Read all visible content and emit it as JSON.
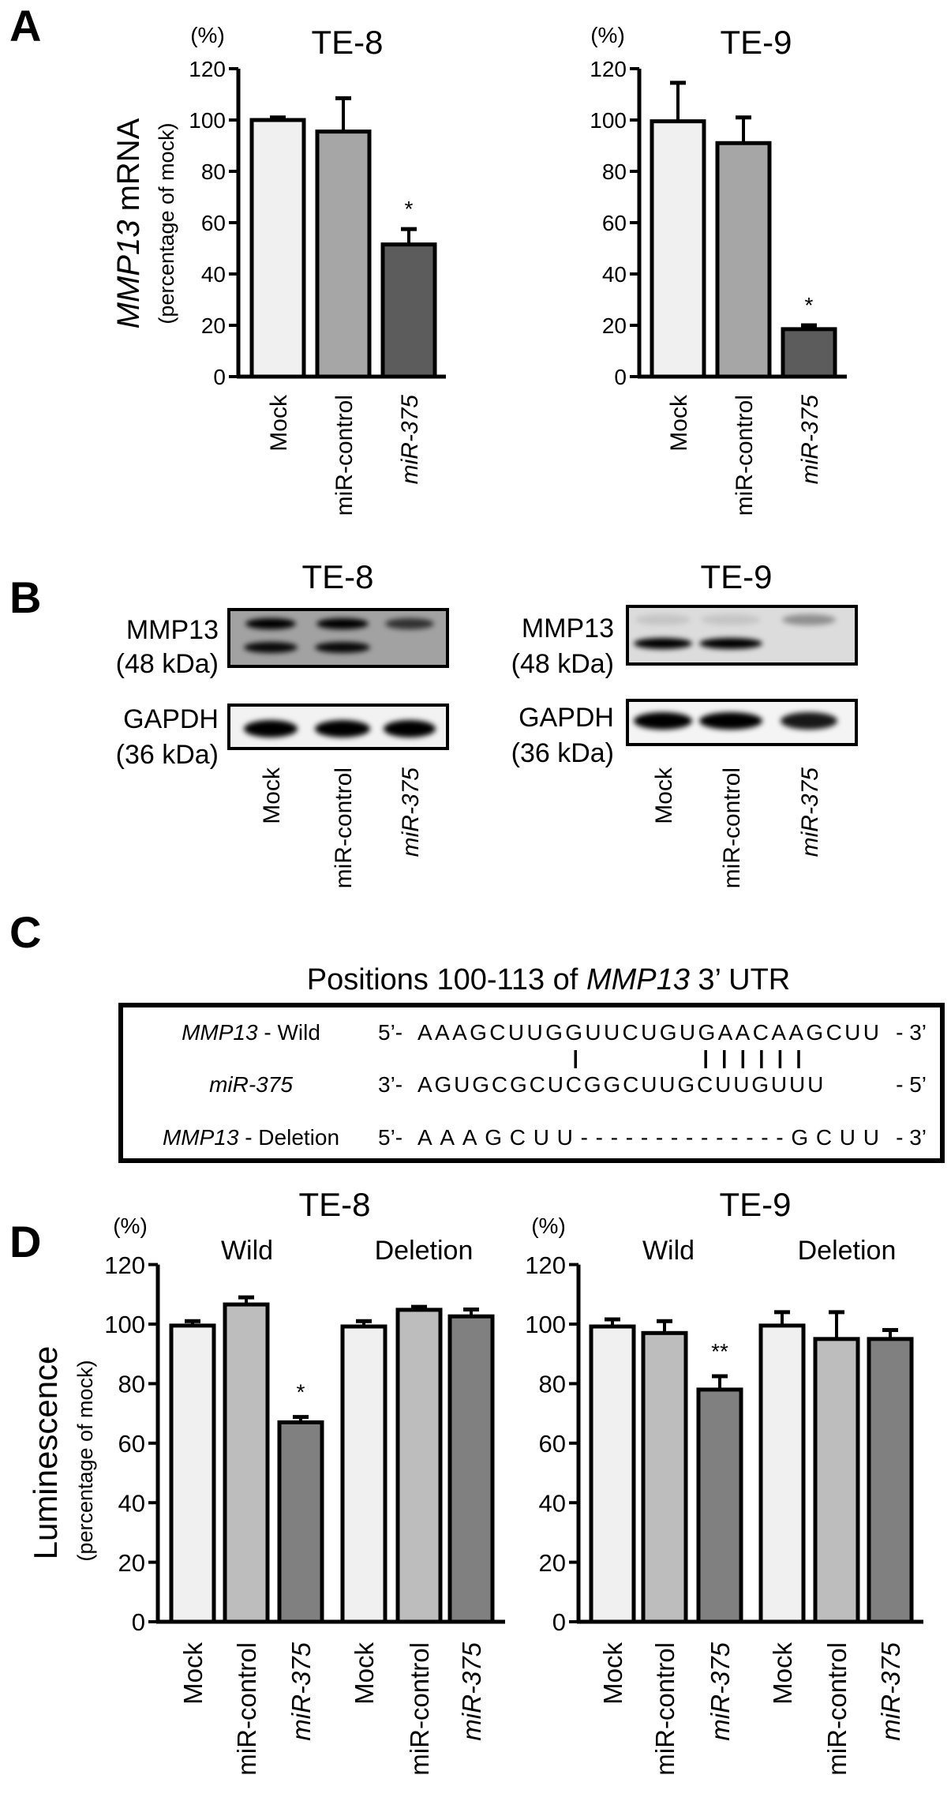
{
  "panels": {
    "a": "A",
    "b": "B",
    "c": "C",
    "d": "D"
  },
  "colors": {
    "mock": "#f0f0f0",
    "mir_control_a": "#a6a6a6",
    "mir_375_a": "#5c5c5c",
    "mir_control_d": "#bdbdbd",
    "mir_375_d": "#808080",
    "outline": "#000000"
  },
  "chart_data": [
    {
      "type": "bar",
      "panel": "A",
      "title": "TE-8",
      "unit": "(%)",
      "ylabel": {
        "italic": "MMP13",
        "rest": " mRNA"
      },
      "ylabel_sub": "(percentage of mock)",
      "ylim": [
        0,
        120
      ],
      "yticks": [
        0,
        20,
        40,
        60,
        80,
        100,
        120
      ],
      "categories": [
        "Mock",
        "miR-control",
        "miR-375"
      ],
      "italic": [
        false,
        false,
        true
      ],
      "values": [
        100,
        95.5,
        51.5
      ],
      "errors": [
        1,
        13,
        6
      ],
      "significance": [
        "",
        "",
        "*"
      ],
      "bar_colors": [
        "#f0f0f0",
        "#a6a6a6",
        "#5c5c5c"
      ]
    },
    {
      "type": "bar",
      "panel": "A",
      "title": "TE-9",
      "unit": "(%)",
      "ylim": [
        0,
        120
      ],
      "yticks": [
        0,
        20,
        40,
        60,
        80,
        100,
        120
      ],
      "categories": [
        "Mock",
        "miR-control",
        "miR-375"
      ],
      "italic": [
        false,
        false,
        true
      ],
      "values": [
        99.5,
        91,
        18.5
      ],
      "errors": [
        15,
        10,
        1.5
      ],
      "significance": [
        "",
        "",
        "*"
      ],
      "bar_colors": [
        "#f0f0f0",
        "#a6a6a6",
        "#5c5c5c"
      ]
    },
    {
      "type": "bar",
      "panel": "D",
      "title": "TE-8",
      "unit": "(%)",
      "ylabel": {
        "italic": "",
        "rest": "Luminescence"
      },
      "ylabel_sub": "(percentage of mock)",
      "groups": [
        "Wild",
        "Deletion"
      ],
      "ylim": [
        0,
        120
      ],
      "yticks": [
        0,
        20,
        40,
        60,
        80,
        100,
        120
      ],
      "categories": [
        "Mock",
        "miR-control",
        "miR-375",
        "Mock",
        "miR-control",
        "miR-375"
      ],
      "italic": [
        false,
        false,
        true,
        false,
        false,
        true
      ],
      "values": [
        99.5,
        106.6,
        67,
        99.2,
        104.8,
        102.6
      ],
      "errors": [
        1.5,
        2.4,
        1.8,
        1.8,
        1,
        2.3
      ],
      "significance": [
        "",
        "",
        "*",
        "",
        "",
        ""
      ],
      "bar_colors": [
        "#f0f0f0",
        "#bdbdbd",
        "#808080",
        "#f0f0f0",
        "#bdbdbd",
        "#808080"
      ]
    },
    {
      "type": "bar",
      "panel": "D",
      "title": "TE-9",
      "unit": "(%)",
      "groups": [
        "Wild",
        "Deletion"
      ],
      "ylim": [
        0,
        120
      ],
      "yticks": [
        0,
        20,
        40,
        60,
        80,
        100,
        120
      ],
      "categories": [
        "Mock",
        "miR-control",
        "miR-375",
        "Mock",
        "miR-control",
        "miR-375"
      ],
      "italic": [
        false,
        false,
        true,
        false,
        false,
        true
      ],
      "values": [
        99.2,
        97,
        78,
        99.5,
        95,
        95
      ],
      "errors": [
        2.4,
        4,
        4.5,
        4.5,
        9,
        3
      ],
      "significance": [
        "",
        "",
        "**",
        "",
        "",
        ""
      ],
      "bar_colors": [
        "#f0f0f0",
        "#bdbdbd",
        "#808080",
        "#f0f0f0",
        "#bdbdbd",
        "#808080"
      ]
    }
  ],
  "blots": [
    {
      "title": "TE-8",
      "lanes": [
        "Mock",
        "miR-control",
        "miR-375"
      ],
      "lane_italic": [
        false,
        false,
        true
      ],
      "rows": [
        {
          "protein": "MMP13",
          "size": "(48 kDa)",
          "background": "#a2a2a2",
          "band_intensity_upper": [
            1,
            1,
            0.7
          ],
          "band_intensity_lower": [
            0.95,
            0.95,
            0
          ]
        },
        {
          "protein": "GAPDH",
          "size": "(36 kDa)",
          "background": "#f2f2f2",
          "band_intensity_lower": [
            1,
            1,
            1
          ]
        }
      ]
    },
    {
      "title": "TE-9",
      "lanes": [
        "Mock",
        "miR-control",
        "miR-375"
      ],
      "lane_italic": [
        false,
        false,
        true
      ],
      "rows": [
        {
          "protein": "MMP13",
          "size": "(48 kDa)",
          "background": "#dcdcdc",
          "band_intensity_upper": [
            0.1,
            0.1,
            0.35
          ],
          "band_intensity_lower": [
            1,
            1,
            0
          ]
        },
        {
          "protein": "GAPDH",
          "size": "(36 kDa)",
          "background": "#f4f4f4",
          "band_intensity_lower": [
            1,
            1,
            0.9
          ]
        }
      ]
    }
  ],
  "sequence": {
    "title": {
      "pre": "Positions 100-113 of ",
      "italic": "MMP13",
      "post": " 3’ UTR"
    },
    "rows": [
      {
        "label_italic": "MMP13",
        "label_rest": " - Wild",
        "left": "5’-",
        "seq": "AAAGCUUGGUUCUGUGAACAAGCUU",
        "right": "- 3’"
      },
      {
        "label_italic": "miR-375",
        "label_rest": "",
        "left": "3’-",
        "seq": "AGUGCGCUCGGCUUGCUUGUUU",
        "right": "- 5’"
      },
      {
        "label_italic": "MMP13",
        "label_rest": " - Deletion",
        "left": "5’-",
        "seq": "AAAGCUU--------------GCUU",
        "right": "- 3’"
      }
    ],
    "paired_positions": [
      8,
      15,
      16,
      17,
      18,
      19,
      20
    ]
  }
}
